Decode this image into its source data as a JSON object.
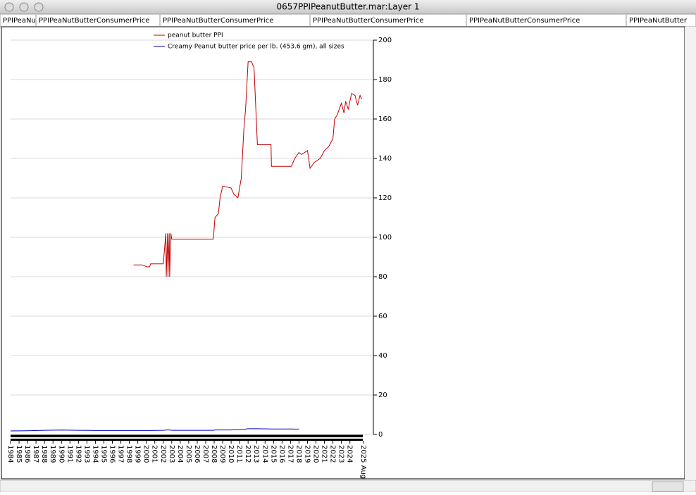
{
  "window": {
    "title": "0657PPIPeanutButter.mar:Layer 1",
    "tabs": [
      "PPIPeaNu",
      "PPIPeaNutButterConsumerPrice",
      "PPIPeaNutButterConsumerPrice",
      "PPIPeaNutButterConsumerPrice",
      "PPIPeaNutButterConsumerPrice",
      "PPIPeaNutButter"
    ]
  },
  "chart_data": {
    "type": "line",
    "x": [
      1984,
      1986,
      1988,
      1990,
      1992,
      1994,
      1996,
      1998.5,
      1999.5,
      2000.1,
      2000.4,
      2000.5,
      2002.0,
      2002.3,
      2002.35,
      2002.5,
      2002.55,
      2002.7,
      2002.75,
      2002.9,
      2003.0,
      2004,
      2007.9,
      2008.1,
      2008.5,
      2008.7,
      2009.0,
      2010.0,
      2010.3,
      2010.8,
      2011.2,
      2011.5,
      2011.7,
      2012.0,
      2012.4,
      2012.7,
      2013.1,
      2014.7,
      2014.75,
      2017.1,
      2017.5,
      2018.0,
      2018.3,
      2019.0,
      2019.3,
      2019.8,
      2020.5,
      2021.0,
      2021.5,
      2022.0,
      2022.2,
      2022.5,
      2023.0,
      2023.3,
      2023.5,
      2023.8,
      2024.2,
      2024.6,
      2024.9,
      2025.2,
      2025.4
    ],
    "series": [
      {
        "name": "peanut butter PPI",
        "color": "#c00000",
        "values": [
          null,
          null,
          null,
          null,
          null,
          null,
          null,
          86,
          86,
          85,
          85,
          86.5,
          86.5,
          102,
          80,
          102,
          80,
          102,
          80,
          102,
          99,
          99,
          99,
          110,
          112,
          120,
          126,
          125,
          122,
          120,
          130,
          155,
          165,
          189,
          189,
          186,
          147,
          147,
          136,
          136,
          140,
          143,
          142,
          144,
          135,
          138,
          140,
          144,
          146,
          150,
          160,
          162,
          168,
          163,
          169,
          165,
          173,
          172,
          167,
          172,
          170
        ]
      },
      {
        "name": "Creamy Peanut butter price per lb. (453.6 gm), all sizes",
        "color": "#0000c0",
        "values": [
          1.8,
          1.9,
          2.1,
          2.2,
          2.1,
          2.0,
          2.0,
          2.0,
          2.0,
          2.0,
          2.0,
          2.0,
          2.1,
          2.2,
          2.2,
          2.3,
          2.3,
          2.2,
          2.2,
          2.2,
          2.1,
          2.1,
          2.1,
          2.3,
          2.3,
          2.3,
          2.3,
          2.3,
          2.4,
          2.4,
          2.5,
          2.6,
          2.7,
          2.9,
          2.9,
          2.9,
          2.9,
          2.8,
          2.8,
          2.8,
          2.7,
          2.7,
          null,
          null,
          null,
          null,
          null,
          null,
          null,
          null,
          null,
          null,
          null,
          null,
          null,
          null,
          null,
          null,
          null,
          null,
          null
        ]
      }
    ],
    "xlim": [
      1984,
      2026.6
    ],
    "xticks": [
      1984,
      1985,
      1986,
      1987,
      1988,
      1989,
      1990,
      1991,
      1992,
      1993,
      1994,
      1995,
      1996,
      1997,
      1998,
      1999,
      2000,
      2001,
      2002,
      2003,
      2004,
      2005,
      2006,
      2007,
      2008,
      2009,
      2010,
      2011,
      2012,
      2013,
      2014,
      2015,
      2016,
      2017,
      2018,
      2019,
      2020,
      2021,
      2022,
      2023,
      2024,
      {
        "value": 2025.6,
        "label": "2025 Aug"
      }
    ],
    "ylim": [
      0,
      200
    ],
    "yticks": [
      0,
      20,
      40,
      60,
      80,
      100,
      120,
      140,
      160,
      180,
      200
    ],
    "grid": true
  }
}
